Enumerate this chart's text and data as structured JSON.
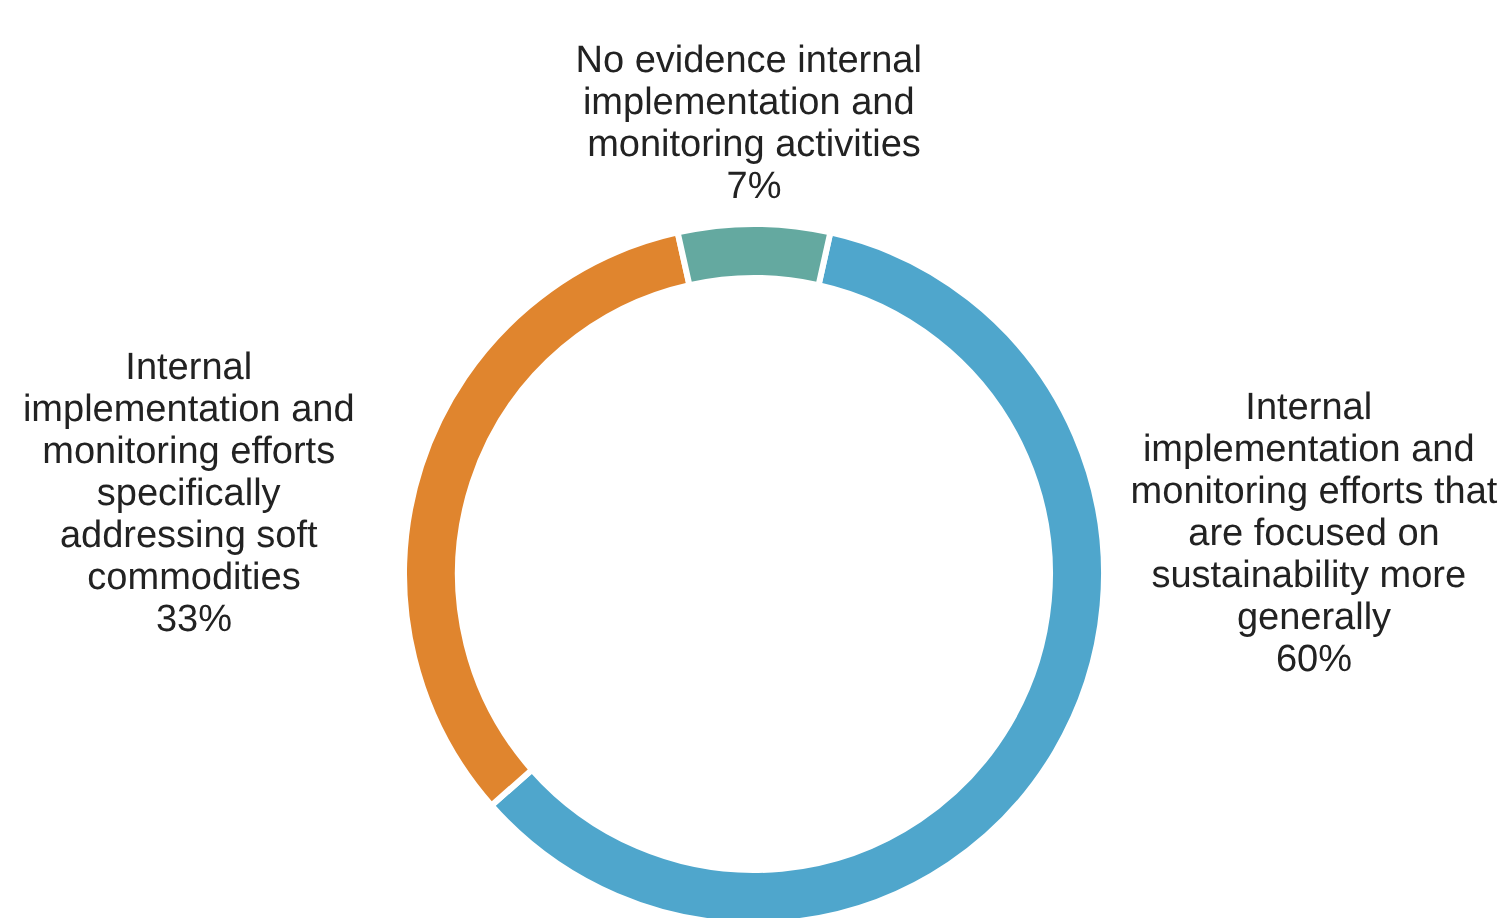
{
  "chart_data": {
    "type": "donut",
    "categories": [
      "Internal implementation and monitoring efforts that are focused on sustainability more generally",
      "Internal implementation and monitoring efforts specifically addressing soft commodities",
      "No evidence internal implementation and monitoring activities"
    ],
    "values": [
      60,
      33,
      7
    ],
    "colors": [
      "#4fa6cc",
      "#e0852e",
      "#64a9a0"
    ],
    "value_labels": [
      "60%",
      "33%",
      "7%"
    ],
    "legend": false
  }
}
